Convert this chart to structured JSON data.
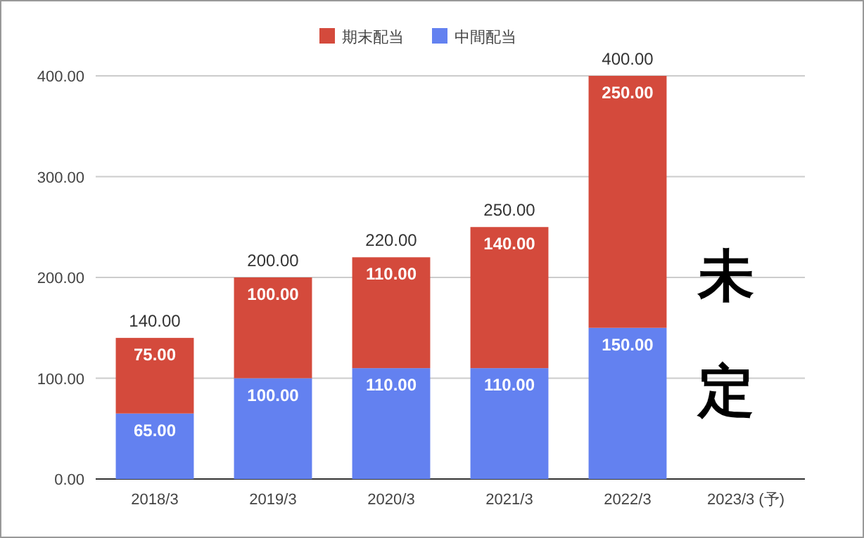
{
  "chart_data": {
    "type": "bar",
    "stacked": true,
    "categories": [
      "2018/3",
      "2019/3",
      "2020/3",
      "2021/3",
      "2022/3",
      "2023/3 (予)"
    ],
    "series": [
      {
        "name": "中間配当",
        "color": "#6381f0",
        "values": [
          65,
          100,
          110,
          110,
          150,
          null
        ],
        "value_labels": [
          "65.00",
          "100.00",
          "110.00",
          "110.00",
          "150.00",
          null
        ]
      },
      {
        "name": "期末配当",
        "color": "#d44a3c",
        "values": [
          75,
          100,
          110,
          140,
          250,
          null
        ],
        "value_labels": [
          "75.00",
          "100.00",
          "110.00",
          "140.00",
          "250.00",
          null
        ]
      }
    ],
    "totals": [
      "140.00",
      "200.00",
      "220.00",
      "250.00",
      "400.00",
      null
    ],
    "ylim": [
      0,
      400
    ],
    "yticks": [
      {
        "value": 0,
        "label": "0.00"
      },
      {
        "value": 100,
        "label": "100.00"
      },
      {
        "value": 200,
        "label": "200.00"
      },
      {
        "value": 300,
        "label": "300.00"
      },
      {
        "value": 400,
        "label": "400.00"
      }
    ],
    "grid": "y",
    "legend": "top",
    "annotations": [
      "未定"
    ]
  }
}
